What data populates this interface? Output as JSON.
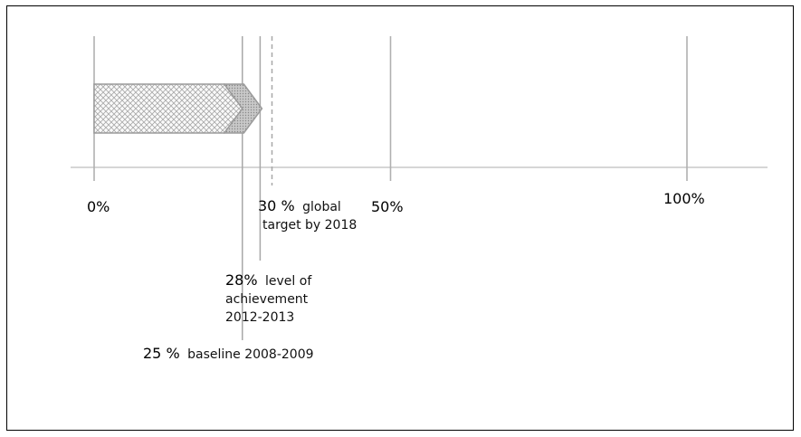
{
  "chart_data": {
    "type": "bar",
    "orientation": "horizontal",
    "xlim": [
      0,
      100
    ],
    "ticks": [
      {
        "value": 0,
        "label": "0%"
      },
      {
        "value": 50,
        "label": "50%"
      },
      {
        "value": 100,
        "label": "100%"
      }
    ],
    "bar": {
      "start": 0,
      "end": 28,
      "shaded_segment_start": 25
    },
    "markers": [
      {
        "id": "baseline",
        "value": 25,
        "line": "solid",
        "value_text": "25 %",
        "text": [
          "baseline 2008-2009"
        ]
      },
      {
        "id": "achievement",
        "value": 28,
        "line": "solid",
        "value_text": "28%",
        "text": [
          "level of",
          "achievement",
          "2012-2013"
        ]
      },
      {
        "id": "target",
        "value": 30,
        "line": "dashed",
        "value_text": "30 %",
        "text": [
          "global",
          "target by 2018"
        ]
      }
    ]
  }
}
